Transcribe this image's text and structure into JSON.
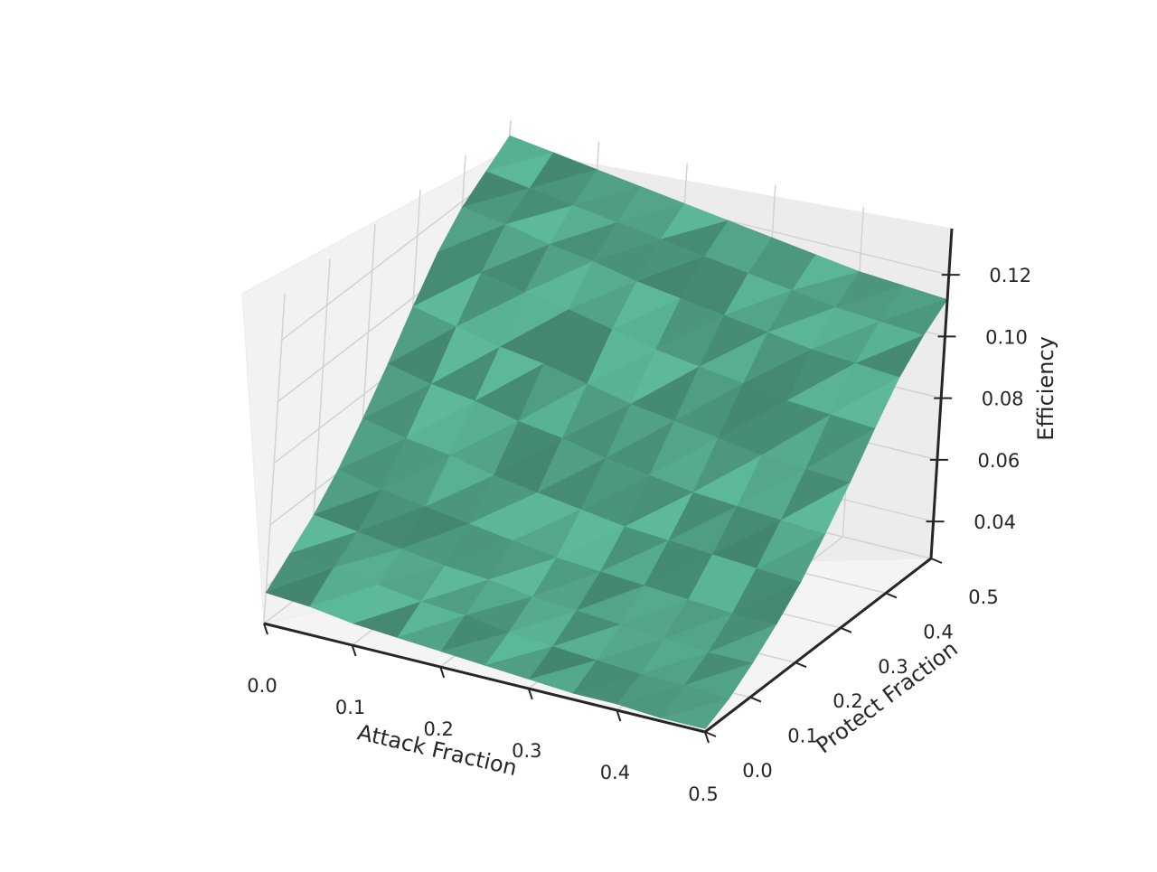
{
  "chart_data": {
    "type": "surface3d",
    "title": "",
    "xlabel": "Attack Fraction",
    "ylabel": "Protect Fraction",
    "zlabel": "Efficiency",
    "x_ticks": [
      "0.0",
      "0.1",
      "0.2",
      "0.3",
      "0.4",
      "0.5"
    ],
    "y_ticks": [
      "0.0",
      "0.1",
      "0.2",
      "0.3",
      "0.4",
      "0.5"
    ],
    "z_ticks": [
      "0.04",
      "0.06",
      "0.08",
      "0.10",
      "0.12"
    ],
    "xlim": [
      0.0,
      0.5
    ],
    "ylim": [
      0.0,
      0.5
    ],
    "zlim": [
      0.028,
      0.135
    ],
    "grid": true,
    "surface_color": "#56ab8f",
    "x": [
      0.0,
      0.05,
      0.1,
      0.15,
      0.2,
      0.25,
      0.3,
      0.35,
      0.4,
      0.45,
      0.5
    ],
    "y": [
      0.0,
      0.05,
      0.1,
      0.15,
      0.2,
      0.25,
      0.3,
      0.35,
      0.4,
      0.45,
      0.5
    ],
    "z_rows_by_x": [
      [
        0.038,
        0.045,
        0.052,
        0.061,
        0.072,
        0.084,
        0.097,
        0.109,
        0.118,
        0.124,
        0.13
      ],
      [
        0.037,
        0.044,
        0.05,
        0.058,
        0.069,
        0.081,
        0.094,
        0.106,
        0.116,
        0.122,
        0.128
      ],
      [
        0.035,
        0.042,
        0.048,
        0.056,
        0.067,
        0.079,
        0.091,
        0.103,
        0.113,
        0.12,
        0.126
      ],
      [
        0.034,
        0.04,
        0.046,
        0.054,
        0.064,
        0.076,
        0.089,
        0.101,
        0.111,
        0.118,
        0.124
      ],
      [
        0.033,
        0.039,
        0.045,
        0.052,
        0.062,
        0.074,
        0.086,
        0.098,
        0.108,
        0.116,
        0.122
      ],
      [
        0.032,
        0.037,
        0.043,
        0.05,
        0.06,
        0.071,
        0.083,
        0.095,
        0.106,
        0.114,
        0.12
      ],
      [
        0.031,
        0.036,
        0.042,
        0.049,
        0.058,
        0.069,
        0.081,
        0.093,
        0.104,
        0.112,
        0.118
      ],
      [
        0.03,
        0.035,
        0.041,
        0.048,
        0.057,
        0.067,
        0.079,
        0.091,
        0.102,
        0.11,
        0.116
      ],
      [
        0.03,
        0.034,
        0.04,
        0.047,
        0.056,
        0.066,
        0.077,
        0.089,
        0.1,
        0.108,
        0.114
      ],
      [
        0.029,
        0.034,
        0.039,
        0.046,
        0.055,
        0.065,
        0.076,
        0.088,
        0.099,
        0.107,
        0.113
      ],
      [
        0.029,
        0.033,
        0.039,
        0.046,
        0.054,
        0.064,
        0.075,
        0.087,
        0.098,
        0.106,
        0.112
      ]
    ]
  }
}
